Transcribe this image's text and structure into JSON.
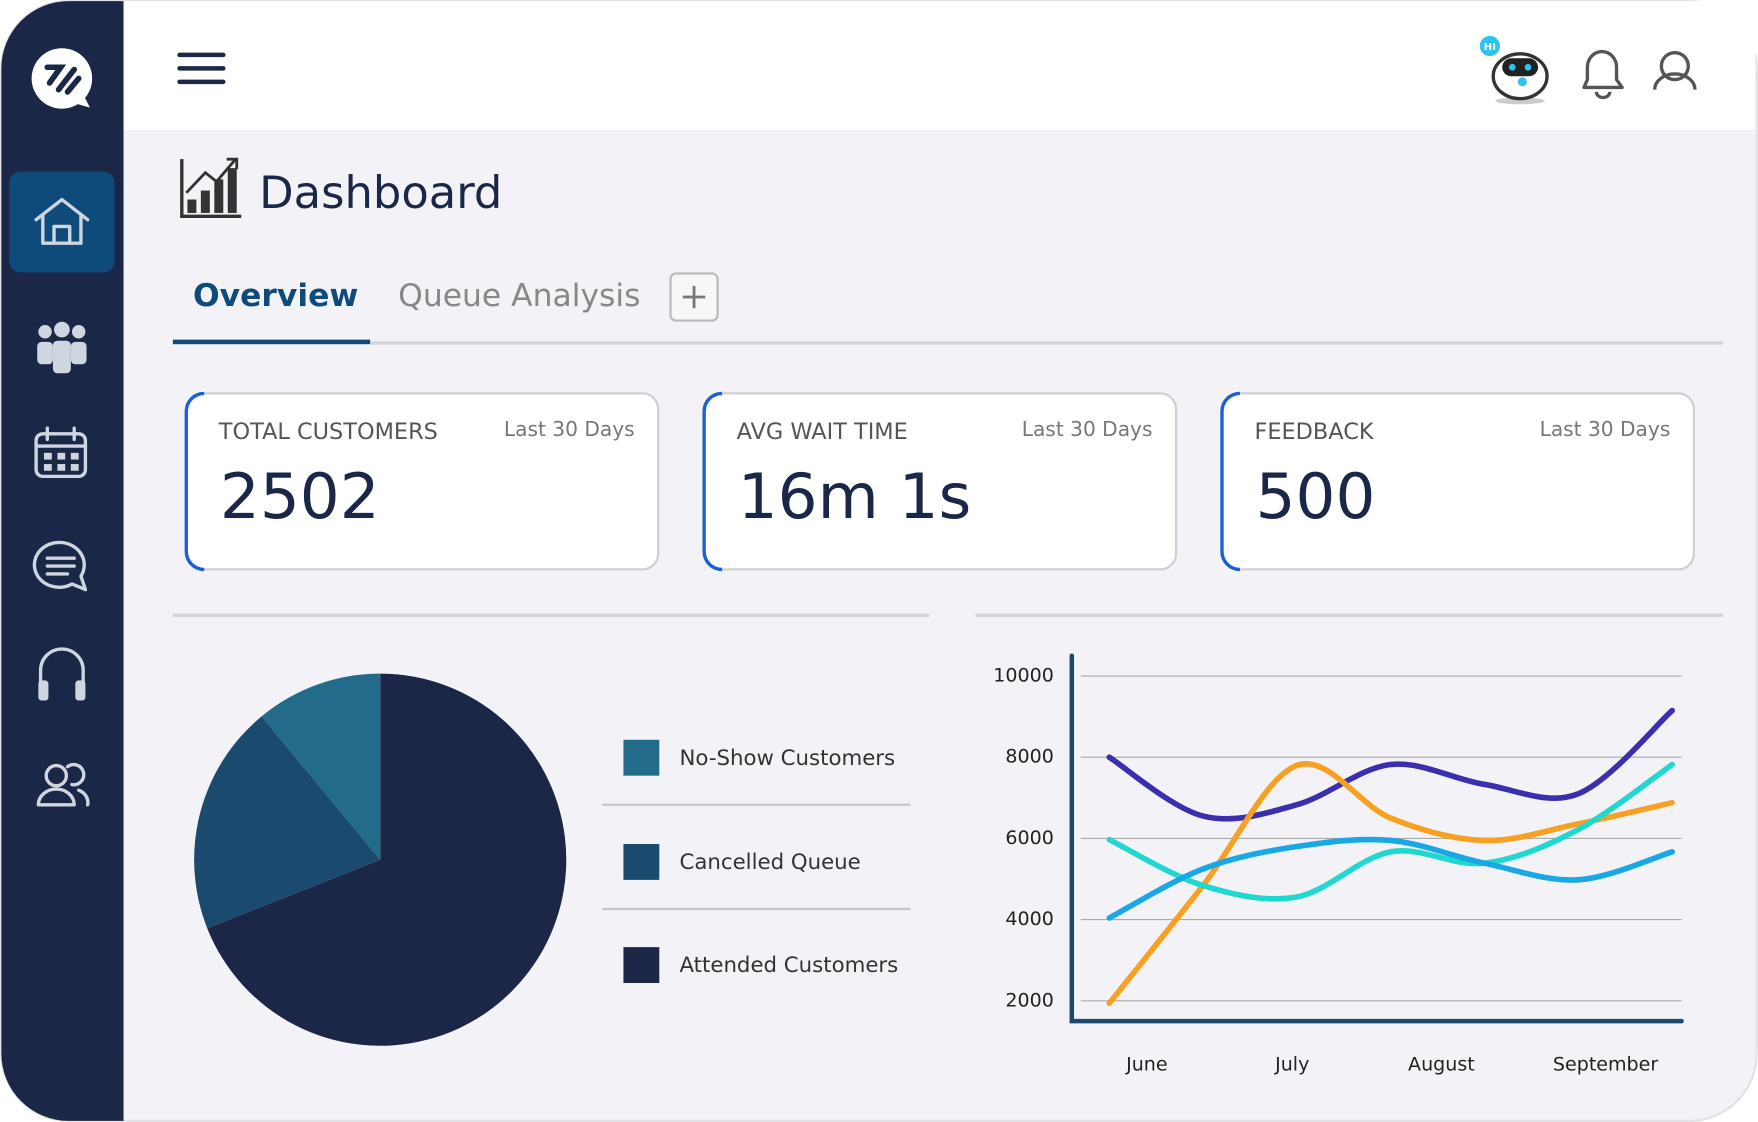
{
  "header": {
    "bot_badge": "HI"
  },
  "page": {
    "title": "Dashboard"
  },
  "tabs": [
    "Overview",
    "Queue Analysis"
  ],
  "cards": [
    {
      "label": "TOTAL CUSTOMERS",
      "period": "Last 30 Days",
      "value": 2502
    },
    {
      "label": "AVG WAIT TIME",
      "period": "Last 30 Days",
      "value": "16m 1s"
    },
    {
      "label": "FEEDBACK",
      "period": "Last 30 Days",
      "value": 500
    }
  ],
  "chart_data": [
    {
      "type": "pie",
      "categories": [
        "No-Show Customers",
        "Cancelled Queue",
        "Attended Customers"
      ],
      "values": [
        11,
        20,
        69
      ],
      "colors": [
        "#226b8a",
        "#1b4a6f",
        "#1c2748"
      ]
    },
    {
      "type": "line",
      "x": [
        0,
        1,
        2,
        3,
        4,
        5,
        6
      ],
      "xlim": [
        -0.4,
        6.1
      ],
      "xticks": [
        {
          "value": 0.4,
          "label": "June"
        },
        {
          "value": 1.95,
          "label": "July"
        },
        {
          "value": 3.54,
          "label": "August"
        },
        {
          "value": 5.29,
          "label": "September"
        }
      ],
      "ylim": [
        1500,
        10500
      ],
      "yticks": [
        2000,
        4000,
        6000,
        8000,
        10000
      ],
      "grid": true,
      "series": [
        {
          "color": "#3b2fb0",
          "values": [
            8000,
            6550,
            6830,
            7820,
            7330,
            7100,
            9150
          ]
        },
        {
          "color": "#f7a021",
          "values": [
            1940,
            4840,
            7800,
            6500,
            5950,
            6360,
            6880
          ]
        },
        {
          "color": "#20d8cf",
          "values": [
            5970,
            4840,
            4560,
            5670,
            5390,
            6220,
            7820
          ]
        },
        {
          "color": "#1aa7e6",
          "values": [
            4040,
            5250,
            5800,
            5950,
            5390,
            4980,
            5670
          ]
        }
      ]
    }
  ]
}
